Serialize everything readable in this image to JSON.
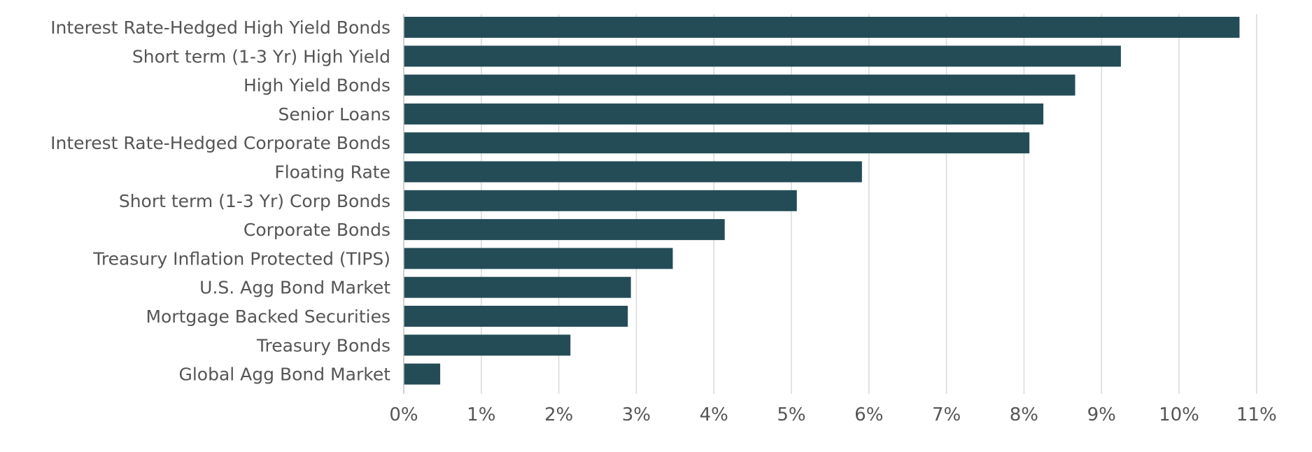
{
  "chart_data": {
    "type": "bar",
    "orientation": "horizontal",
    "title": "",
    "xlabel": "",
    "ylabel": "",
    "bar_color": "#244c57",
    "grid": true,
    "xlim": [
      0,
      11
    ],
    "x_ticks": [
      "0%",
      "1%",
      "2%",
      "3%",
      "4%",
      "5%",
      "6%",
      "7%",
      "8%",
      "9%",
      "10%",
      "11%"
    ],
    "categories": [
      "Interest Rate-Hedged High Yield Bonds",
      "Short term (1-3 Yr) High Yield",
      "High Yield Bonds",
      "Senior Loans",
      "Interest Rate-Hedged Corporate Bonds",
      "Floating Rate",
      "Short term (1-3 Yr) Corp Bonds",
      "Corporate Bonds",
      "Treasury Inflation Protected (TIPS)",
      "U.S. Agg Bond Market",
      "Mortgage Backed Securities",
      "Treasury Bonds",
      "Global Agg Bond Market"
    ],
    "values": [
      10.78,
      9.25,
      8.66,
      8.25,
      8.07,
      5.91,
      5.07,
      4.14,
      3.47,
      2.93,
      2.89,
      2.15,
      0.47
    ]
  }
}
